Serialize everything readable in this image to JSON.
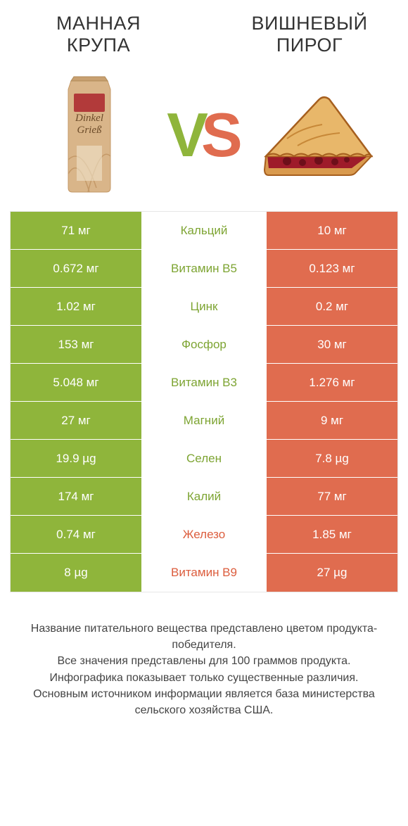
{
  "colors": {
    "green": "#8fb53b",
    "orange": "#e06c4f",
    "green_text": "#7da432",
    "orange_text": "#dc5d3d",
    "row_border": "#ffffff",
    "table_border": "#e6e6e6",
    "footer_text": "#444444",
    "bag_body": "#d9b589",
    "bag_label": "#b23a3a",
    "bag_label_text": "#ffffff",
    "bag_lines": "#c49968",
    "pie_crust": "#d99a4e",
    "pie_crust_edge": "#a65f1e",
    "pie_filling": "#9e1b2a",
    "pie_filling_dark": "#6d0f1a"
  },
  "titles": {
    "left": "МАННАЯ КРУПА",
    "right": "ВИШНЕВЫЙ ПИРОГ"
  },
  "vs": {
    "v": "V",
    "s": "S"
  },
  "bag_text": {
    "line1": "Dinkel",
    "line2": "Grieß"
  },
  "rows": [
    {
      "left": "71 мг",
      "mid": "Кальций",
      "right": "10 мг",
      "winner": "left"
    },
    {
      "left": "0.672 мг",
      "mid": "Витамин B5",
      "right": "0.123 мг",
      "winner": "left"
    },
    {
      "left": "1.02 мг",
      "mid": "Цинк",
      "right": "0.2 мг",
      "winner": "left"
    },
    {
      "left": "153 мг",
      "mid": "Фосфор",
      "right": "30 мг",
      "winner": "left"
    },
    {
      "left": "5.048 мг",
      "mid": "Витамин B3",
      "right": "1.276 мг",
      "winner": "left"
    },
    {
      "left": "27 мг",
      "mid": "Магний",
      "right": "9 мг",
      "winner": "left"
    },
    {
      "left": "19.9 µg",
      "mid": "Селен",
      "right": "7.8 µg",
      "winner": "left"
    },
    {
      "left": "174 мг",
      "mid": "Калий",
      "right": "77 мг",
      "winner": "left"
    },
    {
      "left": "0.74 мг",
      "mid": "Железо",
      "right": "1.85 мг",
      "winner": "right"
    },
    {
      "left": "8 µg",
      "mid": "Витамин B9",
      "right": "27 µg",
      "winner": "right"
    }
  ],
  "footer": {
    "l1": "Название питательного вещества представлено цветом продукта-победителя.",
    "l2": "Все значения представлены для 100 граммов продукта.",
    "l3": "Инфографика показывает только существенные различия.",
    "l4": "Основным источником информации является база министерства сельского хозяйства США."
  }
}
